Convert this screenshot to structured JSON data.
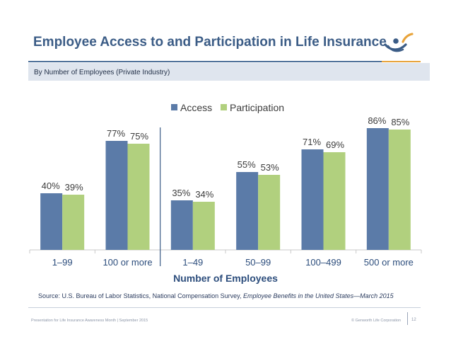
{
  "header": {
    "title": "Employee Access to and Participation in Life Insurance",
    "subtitle": "By Number of Employees (Private Industry)"
  },
  "colors": {
    "access": "#5b7ba8",
    "participation": "#b1d07e",
    "title": "#3b5c86",
    "accent": "#e8a33a"
  },
  "chart_data": {
    "type": "bar",
    "xlabel": "Number of Employees",
    "ylabel": "",
    "ylim": [
      0,
      100
    ],
    "grid": false,
    "legend_position": "top-center",
    "categories": [
      "1–99",
      "100 or more",
      "1–49",
      "50–99",
      "100–499",
      "500 or more"
    ],
    "series": [
      {
        "name": "Access",
        "values": [
          40,
          77,
          35,
          55,
          71,
          86
        ],
        "labels": [
          "40%",
          "77%",
          "35%",
          "55%",
          "71%",
          "86%"
        ]
      },
      {
        "name": "Participation",
        "values": [
          39,
          75,
          34,
          53,
          69,
          85
        ],
        "labels": [
          "39%",
          "75%",
          "34%",
          "53%",
          "69%",
          "85%"
        ]
      }
    ]
  },
  "source": {
    "prefix": "Source: U.S. Bureau of Labor Statistics, National Compensation Survey, ",
    "italic": "Employee Benefits in the United States—March 2015"
  },
  "footer": {
    "left": "Presentation for Life Insurance Awareness Month | September 2015",
    "right": "© Genworth Life Corporation",
    "page": "12"
  },
  "logo": {
    "icon": "genworth-logo-icon"
  }
}
